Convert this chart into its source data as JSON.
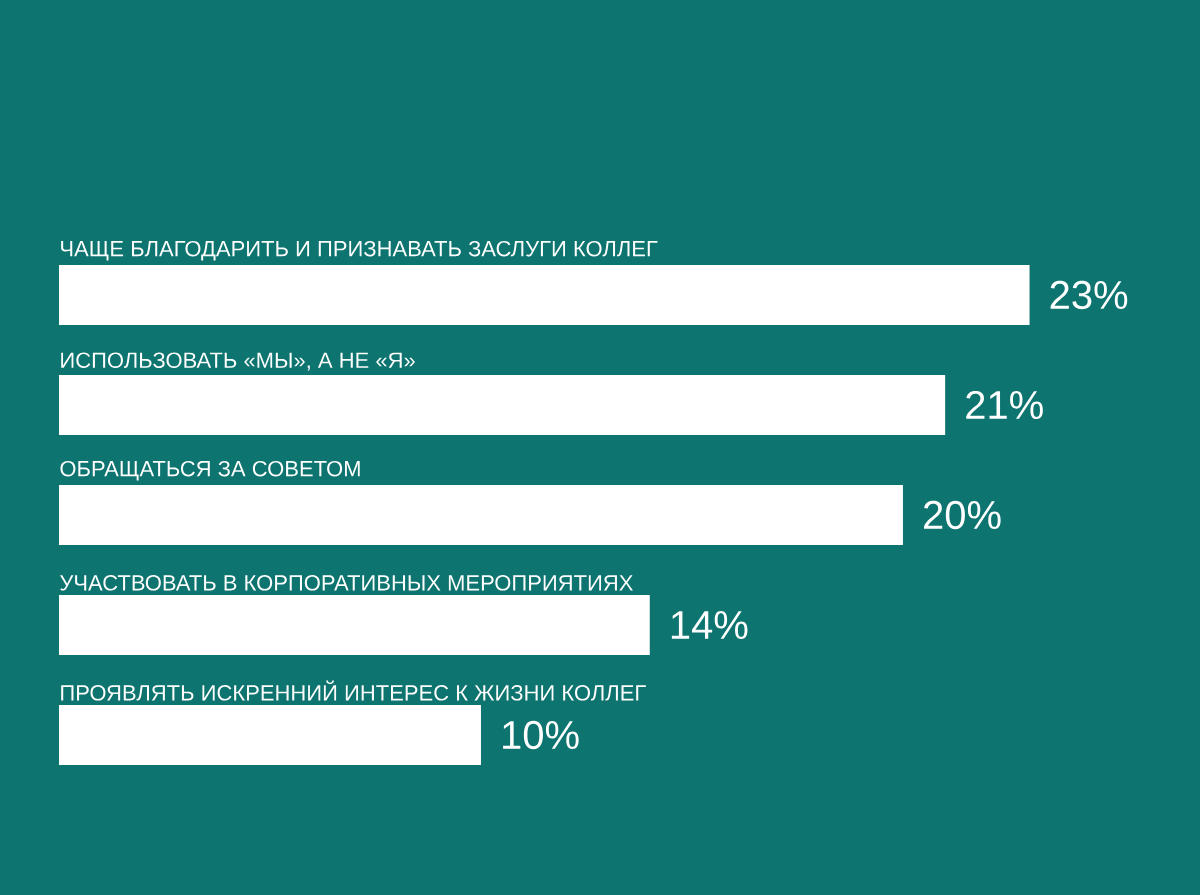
{
  "chart_data": {
    "type": "bar",
    "orientation": "horizontal",
    "categories": [
      "ЧАЩЕ БЛАГОДАРИТЬ И ПРИЗНАВАТЬ ЗАСЛУГИ КОЛЛЕГ",
      "ИСПОЛЬЗОВАТЬ «МЫ», А НЕ «Я»",
      "ОБРАЩАТЬСЯ ЗА СОВЕТОМ",
      "УЧАСТВОВАТЬ В КОРПОРАТИВНЫХ МЕРОПРИЯТИЯХ",
      "ПРОЯВЛЯТЬ ИСКРЕННИЙ ИНТЕРЕС К ЖИЗНИ КОЛЛЕГ"
    ],
    "values": [
      23,
      21,
      20,
      14,
      10
    ],
    "value_labels": [
      "23%",
      "21%",
      "20%",
      "14%",
      "10%"
    ],
    "color": "#ffffff"
  }
}
